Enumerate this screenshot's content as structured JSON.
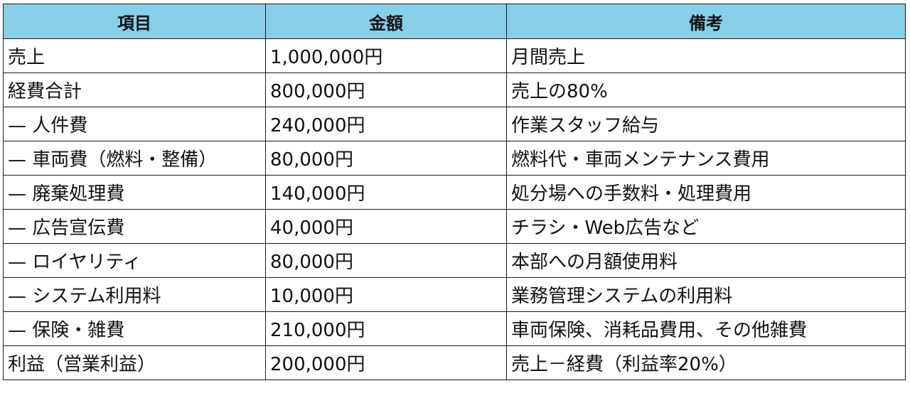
{
  "table": {
    "headers": [
      "項目",
      "金額",
      "備考"
    ],
    "rows": [
      [
        "売上",
        "1,000,000円",
        "月間売上"
      ],
      [
        "経費合計",
        "800,000円",
        "売上の80%"
      ],
      [
        "— 人件費",
        "240,000円",
        "作業スタッフ給与"
      ],
      [
        "— 車両費（燃料・整備）",
        "80,000円",
        "燃料代・車両メンテナンス費用"
      ],
      [
        "— 廃棄処理費",
        "140,000円",
        "処分場への手数料・処理費用"
      ],
      [
        "— 広告宣伝費",
        "40,000円",
        "チラシ・Web広告など"
      ],
      [
        "— ロイヤリティ",
        "80,000円",
        "本部への月額使用料"
      ],
      [
        "— システム利用料",
        "10,000円",
        "業務管理システムの利用料"
      ],
      [
        "— 保険・雑費",
        "210,000円",
        "車両保険、消耗品費用、その他雑費"
      ],
      [
        "利益（営業利益）",
        "200,000円",
        "売上－経費（利益率20%）"
      ]
    ],
    "header_color": "#87cfe9",
    "border_color": "#1a1a1a"
  }
}
